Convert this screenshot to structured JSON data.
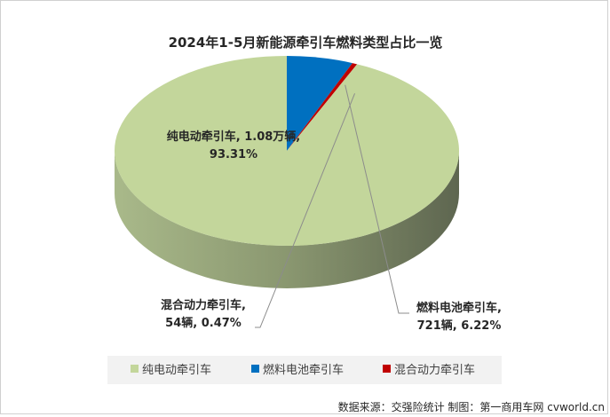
{
  "chart_data": {
    "type": "pie",
    "title": "2024年1-5月新能源牵引车燃料类型占比一览",
    "style": "3d",
    "slices": [
      {
        "name": "纯电动牵引车",
        "label_line1": "纯电动牵引车, 1.08万辆,",
        "label_line2": "93.31%",
        "percent": 93.31,
        "color": "#c3d69b",
        "side_color": "#8e9c71"
      },
      {
        "name": "燃料电池牵引车",
        "label_line1": "燃料电池牵引车,",
        "label_line2": "721辆, 6.22%",
        "percent": 6.22,
        "color": "#0070c0",
        "side_color": "#0c2a4e"
      },
      {
        "name": "混合动力牵引车",
        "label_line1": "混合动力牵引车,",
        "label_line2": "54辆, 0.47%",
        "percent": 0.47,
        "color": "#c00000",
        "side_color": "#7a0000"
      }
    ],
    "legend_position": "bottom"
  },
  "source": "数据来源：交强险统计  制图：第一商用车网 cvworld.cn"
}
